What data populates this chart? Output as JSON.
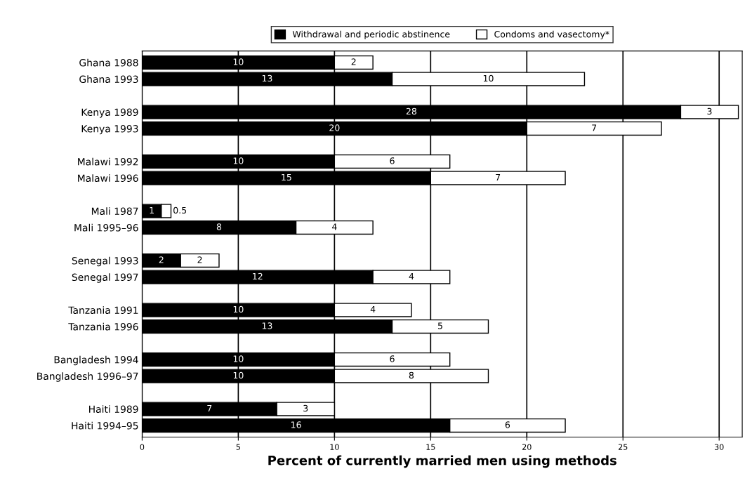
{
  "chart_data": {
    "type": "bar",
    "orientation": "horizontal",
    "stacked": true,
    "xlabel": "Percent of currently married men using methods",
    "categories": [
      "Ghana 1988",
      "Ghana 1993",
      null,
      "Kenya 1989",
      "Kenya 1993",
      null,
      "Malawi 1992",
      "Malawi 1996",
      null,
      "Mali 1987",
      "Mali 1995–96",
      null,
      "Senegal 1993",
      "Senegal 1997",
      null,
      "Tanzania 1991",
      "Tanzania 1996",
      null,
      "Bangladesh 1994",
      "Bangladesh 1996–97",
      null,
      "Haiti 1989",
      "Haiti 1994–95"
    ],
    "series": [
      {
        "name": "Withdrawal and periodic abstinence",
        "color": "#000000",
        "values": [
          10,
          13,
          null,
          28,
          20,
          null,
          10,
          15,
          null,
          1,
          8,
          null,
          2,
          12,
          null,
          10,
          13,
          null,
          10,
          10,
          null,
          7,
          16
        ]
      },
      {
        "name": "Condoms and vasectomy*",
        "color": "#ffffff",
        "values": [
          2,
          10,
          null,
          3,
          7,
          null,
          6,
          7,
          null,
          0.5,
          4,
          null,
          2,
          4,
          null,
          4,
          5,
          null,
          6,
          8,
          null,
          3,
          6
        ]
      }
    ],
    "xlim": [
      0,
      31.2
    ],
    "xticks": [
      0,
      5,
      10,
      15,
      20,
      25,
      30
    ],
    "grid": "x",
    "legend": "top",
    "data_labels": true
  }
}
